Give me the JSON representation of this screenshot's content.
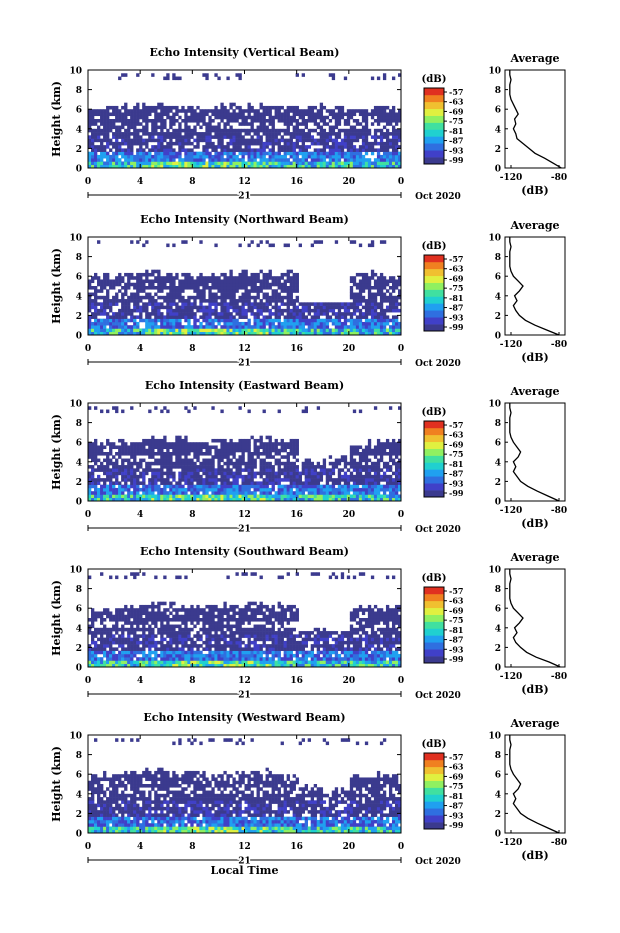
{
  "figure": {
    "x_title": "Local Time",
    "y_title": "Height (km)",
    "colorbar_unit": "(dB)",
    "colorbar_ticks": [
      "-57",
      "-63",
      "-69",
      "-75",
      "-81",
      "-87",
      "-93",
      "-99"
    ],
    "colorbar_colors": [
      "#3b3a8e",
      "#4040c8",
      "#2f6fe0",
      "#20a0f0",
      "#20d0d0",
      "#40e0a0",
      "#90f060",
      "#e0f040",
      "#f0c030",
      "#f08020",
      "#e03020"
    ]
  },
  "chart_data": [
    {
      "type": "heatmap",
      "title": "Echo Intensity (Vertical Beam)",
      "ylabel": "Height (km)",
      "x_ticks": [
        "0",
        "4",
        "8",
        "12",
        "16",
        "20",
        "0"
      ],
      "y_ticks": [
        "0",
        "2",
        "4",
        "6",
        "8",
        "10"
      ],
      "date_label": "21",
      "month_label": "Oct 2020",
      "xlim": [
        0,
        24
      ],
      "ylim": [
        0,
        10
      ],
      "colorbar": {
        "label": "(dB)",
        "ticks": [
          -57,
          -63,
          -69,
          -75,
          -81,
          -87,
          -93,
          -99
        ]
      },
      "top_km": [
        6.2,
        6.3,
        6.4,
        6.2,
        6.1,
        6.3,
        6.5,
        6.4,
        6.3,
        6.2,
        6.1,
        6.2
      ],
      "cloud_present": [
        true,
        true,
        true,
        true,
        true,
        true,
        true,
        true,
        true,
        true,
        true,
        true
      ],
      "average": {
        "title": "Average",
        "xlabel": "(dB)",
        "x_ticks": [
          "-120",
          "-80"
        ],
        "xlim": [
          -125,
          -75
        ],
        "height_km": [
          0,
          0.5,
          1,
          1.5,
          2,
          2.5,
          3,
          3.5,
          4,
          4.5,
          5,
          5.5,
          6,
          6.5,
          7,
          7.5,
          8,
          8.5,
          9,
          9.5,
          10
        ],
        "dB": [
          -78,
          -85,
          -92,
          -100,
          -105,
          -110,
          -115,
          -116,
          -118,
          -116,
          -117,
          -114,
          -116,
          -118,
          -120,
          -121,
          -121,
          -121,
          -120,
          -121,
          -121
        ]
      }
    },
    {
      "type": "heatmap",
      "title": "Echo Intensity (Northward Beam)",
      "ylabel": "Height (km)",
      "x_ticks": [
        "0",
        "4",
        "8",
        "12",
        "16",
        "20",
        "0"
      ],
      "y_ticks": [
        "0",
        "2",
        "4",
        "6",
        "8",
        "10"
      ],
      "date_label": "21",
      "month_label": "Oct 2020",
      "xlim": [
        0,
        24
      ],
      "ylim": [
        0,
        10
      ],
      "colorbar": {
        "label": "(dB)",
        "ticks": [
          -57,
          -63,
          -69,
          -75,
          -81,
          -87,
          -93,
          -99
        ]
      },
      "top_km": [
        6.0,
        6.2,
        6.5,
        6.3,
        6.2,
        6.4,
        6.5,
        6.3,
        3.5,
        3.4,
        6.3,
        6.2
      ],
      "cloud_present": [
        true,
        true,
        true,
        true,
        true,
        true,
        true,
        true,
        false,
        false,
        true,
        true
      ],
      "average": {
        "title": "Average",
        "xlabel": "(dB)",
        "x_ticks": [
          "-120",
          "-80"
        ],
        "xlim": [
          -125,
          -75
        ],
        "height_km": [
          0,
          0.5,
          1,
          1.5,
          2,
          2.5,
          3,
          3.5,
          4,
          4.5,
          5,
          5.5,
          6,
          6.5,
          7,
          7.5,
          8,
          8.5,
          9,
          9.5,
          10
        ],
        "dB": [
          -80,
          -90,
          -100,
          -108,
          -113,
          -116,
          -118,
          -115,
          -117,
          -113,
          -110,
          -114,
          -118,
          -120,
          -121,
          -121,
          -121,
          -121,
          -120,
          -121,
          -121
        ]
      }
    },
    {
      "type": "heatmap",
      "title": "Echo Intensity (Eastward Beam)",
      "ylabel": "Height (km)",
      "x_ticks": [
        "0",
        "4",
        "8",
        "12",
        "16",
        "20",
        "0"
      ],
      "y_ticks": [
        "0",
        "2",
        "4",
        "6",
        "8",
        "10"
      ],
      "date_label": "21",
      "month_label": "Oct 2020",
      "xlim": [
        0,
        24
      ],
      "ylim": [
        0,
        10
      ],
      "colorbar": {
        "label": "(dB)",
        "ticks": [
          -57,
          -63,
          -69,
          -75,
          -81,
          -87,
          -93,
          -99
        ]
      },
      "top_km": [
        6.0,
        6.2,
        6.4,
        6.3,
        6.1,
        6.2,
        6.4,
        6.2,
        4.2,
        4.5,
        6.0,
        6.1
      ],
      "cloud_present": [
        true,
        true,
        true,
        true,
        true,
        true,
        true,
        true,
        true,
        true,
        true,
        true
      ],
      "average": {
        "title": "Average",
        "xlabel": "(dB)",
        "x_ticks": [
          "-120",
          "-80"
        ],
        "xlim": [
          -125,
          -75
        ],
        "height_km": [
          0,
          0.5,
          1,
          1.5,
          2,
          2.5,
          3,
          3.5,
          4,
          4.5,
          5,
          5.5,
          6,
          6.5,
          7,
          7.5,
          8,
          8.5,
          9,
          9.5,
          10
        ],
        "dB": [
          -80,
          -89,
          -98,
          -106,
          -112,
          -115,
          -118,
          -116,
          -118,
          -114,
          -112,
          -115,
          -118,
          -120,
          -121,
          -121,
          -121,
          -121,
          -120,
          -121,
          -121
        ]
      }
    },
    {
      "type": "heatmap",
      "title": "Echo Intensity (Southward Beam)",
      "ylabel": "Height (km)",
      "x_ticks": [
        "0",
        "4",
        "8",
        "12",
        "16",
        "20",
        "0"
      ],
      "y_ticks": [
        "0",
        "2",
        "4",
        "6",
        "8",
        "10"
      ],
      "date_label": "21",
      "month_label": "Oct 2020",
      "xlim": [
        0,
        24
      ],
      "ylim": [
        0,
        10
      ],
      "colorbar": {
        "label": "(dB)",
        "ticks": [
          -57,
          -63,
          -69,
          -75,
          -81,
          -87,
          -93,
          -99
        ]
      },
      "top_km": [
        6.0,
        6.2,
        6.5,
        6.3,
        6.2,
        6.3,
        6.5,
        6.3,
        3.7,
        3.6,
        6.2,
        6.1
      ],
      "cloud_present": [
        true,
        true,
        true,
        true,
        true,
        true,
        true,
        true,
        true,
        true,
        true,
        true
      ],
      "average": {
        "title": "Average",
        "xlabel": "(dB)",
        "x_ticks": [
          "-120",
          "-80"
        ],
        "xlim": [
          -125,
          -75
        ],
        "height_km": [
          0,
          0.5,
          1,
          1.5,
          2,
          2.5,
          3,
          3.5,
          4,
          4.5,
          5,
          5.5,
          6,
          6.5,
          7,
          7.5,
          8,
          8.5,
          9,
          9.5,
          10
        ],
        "dB": [
          -79,
          -88,
          -99,
          -107,
          -112,
          -116,
          -118,
          -115,
          -117,
          -113,
          -110,
          -114,
          -118,
          -120,
          -121,
          -121,
          -121,
          -121,
          -120,
          -121,
          -121
        ]
      }
    },
    {
      "type": "heatmap",
      "title": "Echo Intensity (Westward Beam)",
      "ylabel": "Height (km)",
      "xlabel": "Local Time",
      "x_ticks": [
        "0",
        "4",
        "8",
        "12",
        "16",
        "20",
        "0"
      ],
      "y_ticks": [
        "0",
        "2",
        "4",
        "6",
        "8",
        "10"
      ],
      "date_label": "21",
      "month_label": "Oct 2020",
      "xlim": [
        0,
        24
      ],
      "ylim": [
        0,
        10
      ],
      "colorbar": {
        "label": "(dB)",
        "ticks": [
          -57,
          -63,
          -69,
          -75,
          -81,
          -87,
          -93,
          -99
        ]
      },
      "top_km": [
        6.0,
        6.3,
        6.4,
        6.2,
        6.1,
        6.2,
        6.3,
        6.0,
        4.8,
        4.5,
        5.8,
        6.0
      ],
      "cloud_present": [
        true,
        true,
        true,
        true,
        true,
        true,
        true,
        true,
        true,
        true,
        true,
        true
      ],
      "average": {
        "title": "Average",
        "xlabel": "(dB)",
        "x_ticks": [
          "-120",
          "-80"
        ],
        "xlim": [
          -125,
          -75
        ],
        "height_km": [
          0,
          0.5,
          1,
          1.5,
          2,
          2.5,
          3,
          3.5,
          4,
          4.5,
          5,
          5.5,
          6,
          6.5,
          7,
          7.5,
          8,
          8.5,
          9,
          9.5,
          10
        ],
        "dB": [
          -80,
          -89,
          -98,
          -106,
          -112,
          -115,
          -118,
          -116,
          -118,
          -114,
          -112,
          -115,
          -118,
          -120,
          -121,
          -121,
          -121,
          -121,
          -120,
          -121,
          -121
        ]
      }
    }
  ]
}
